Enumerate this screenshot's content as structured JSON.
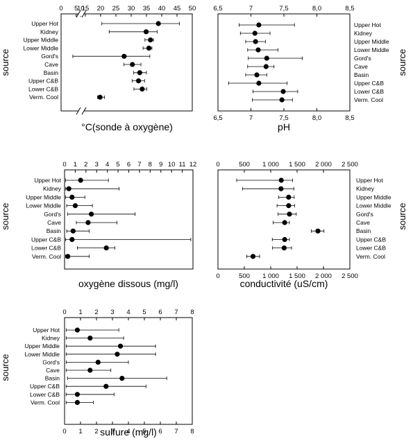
{
  "chart_data": [
    {
      "type": "scatter",
      "panel": "temperature",
      "xlabel": "°C(sonde à oxygène)",
      "ylabel": "source",
      "ylabel_side": "left",
      "axis_break": true,
      "tick_labels": [
        "0",
        "5",
        "10",
        "15",
        "20",
        "25",
        "30",
        "35",
        "40",
        "45",
        "50"
      ],
      "xlim": [
        0,
        50
      ],
      "categories": [
        "Upper Hot",
        "Kidney",
        "Upper Middle",
        "Lower Middle",
        "Gord's",
        "Cave",
        "Basin",
        "Upper C&B",
        "Lower C&B",
        "Verm. Cool"
      ],
      "values": [
        38.9,
        34.9,
        36.3,
        35.8,
        27.7,
        30.4,
        32.8,
        32.4,
        33.6,
        19.8
      ],
      "err_low": [
        20.4,
        22.8,
        34.5,
        33.9,
        3.9,
        27.6,
        30.8,
        30.3,
        30.9,
        19.0
      ],
      "err_high": [
        45.8,
        38.5,
        37.3,
        36.8,
        36.1,
        33.2,
        35.0,
        34.4,
        35.1,
        21.3
      ]
    },
    {
      "type": "scatter",
      "panel": "pH",
      "xlabel": "pH",
      "ylabel": "source",
      "ylabel_side": "right",
      "tick_labels": [
        "6,5",
        "7",
        "7,5",
        "8,0",
        "8,5"
      ],
      "xlim": [
        6.5,
        8.5
      ],
      "categories": [
        "Upper Hot",
        "Kidney",
        "Upper Middle",
        "Lower Middle",
        "Gord's",
        "Cave",
        "Basin",
        "Upper C&B",
        "Lower C&B",
        "Verm. Cool"
      ],
      "values": [
        7.12,
        7.06,
        7.07,
        7.11,
        7.24,
        7.23,
        7.09,
        7.12,
        7.49,
        7.47
      ],
      "err_low": [
        6.82,
        6.84,
        6.92,
        6.95,
        6.96,
        6.95,
        6.92,
        6.66,
        7.03,
        7.02
      ],
      "err_high": [
        7.66,
        7.29,
        7.22,
        7.41,
        7.78,
        7.35,
        7.24,
        7.55,
        7.71,
        7.63
      ]
    },
    {
      "type": "scatter",
      "panel": "oxygen",
      "xlabel": "oxygène dissous (mg/l)",
      "ylabel": "source",
      "ylabel_side": "left",
      "tick_labels": [
        "0",
        "1",
        "2",
        "3",
        "4",
        "5",
        "6",
        "7",
        "8",
        "9",
        "10",
        "11",
        "12"
      ],
      "xlim": [
        0,
        12
      ],
      "categories": [
        "Upper Hot",
        "Kidney",
        "Upper Middle",
        "Lower Middle",
        "Gord's",
        "Cave",
        "Basin",
        "Upper C&B",
        "Lower C&B",
        "Verm. Cool"
      ],
      "values": [
        1.5,
        0.4,
        0.7,
        1.0,
        2.5,
        2.2,
        0.8,
        0.7,
        3.9,
        0.3
      ],
      "err_low": [
        0.1,
        0.1,
        0.1,
        0.2,
        0.3,
        1.1,
        0.2,
        0.1,
        1.2,
        0.1
      ],
      "err_high": [
        4.1,
        5.1,
        1.9,
        2.6,
        6.6,
        4.9,
        2.3,
        11.8,
        4.7,
        2.3
      ]
    },
    {
      "type": "scatter",
      "panel": "conductivity",
      "xlabel": "conductivité (uS/cm)",
      "ylabel": "source",
      "ylabel_side": "right",
      "tick_labels": [
        "0",
        "500",
        "1 000",
        "1 500",
        "2 000",
        "2 500"
      ],
      "xlim": [
        0,
        2500
      ],
      "categories": [
        "Upper Hot",
        "Kidney",
        "Upper Middle",
        "Lower Middle",
        "Gord's",
        "Cave",
        "Basin",
        "Upper C&B",
        "Lower C&B",
        "Verm. Cool"
      ],
      "values": [
        1200,
        1195,
        1340,
        1340,
        1355,
        1265,
        1895,
        1265,
        1255,
        665
      ],
      "err_low": [
        355,
        465,
        1150,
        1120,
        1140,
        1045,
        1770,
        1030,
        1035,
        545
      ],
      "err_high": [
        1415,
        1440,
        1445,
        1455,
        1485,
        1355,
        2010,
        1355,
        1395,
        790
      ]
    },
    {
      "type": "scatter",
      "panel": "sulfide",
      "xlabel": "sulfure (mg/l)",
      "ylabel": "source",
      "ylabel_side": "left",
      "tick_labels": [
        "0",
        "1",
        "2",
        "3",
        "4",
        "5",
        "6",
        "7",
        "8"
      ],
      "xlim": [
        0,
        8
      ],
      "categories": [
        "Upper Hot",
        "Kidney",
        "Upper Middle",
        "Lower Middle",
        "Gord's",
        "Cave",
        "Basin",
        "Upper C&B",
        "Lower C&B",
        "Verm. Cool"
      ],
      "values": [
        0.8,
        1.6,
        3.5,
        3.3,
        2.1,
        1.6,
        3.6,
        2.6,
        0.8,
        0.8
      ],
      "err_low": [
        0.1,
        0.1,
        0.1,
        0.1,
        0.1,
        0.1,
        0.2,
        0.1,
        0.1,
        0.1
      ],
      "err_high": [
        3.4,
        3.7,
        5.7,
        5.7,
        4.0,
        2.9,
        6.4,
        5.1,
        3.1,
        1.8
      ]
    }
  ],
  "colors": {
    "marker": "#000000",
    "axis": "#000000",
    "background": "#ffffff"
  }
}
